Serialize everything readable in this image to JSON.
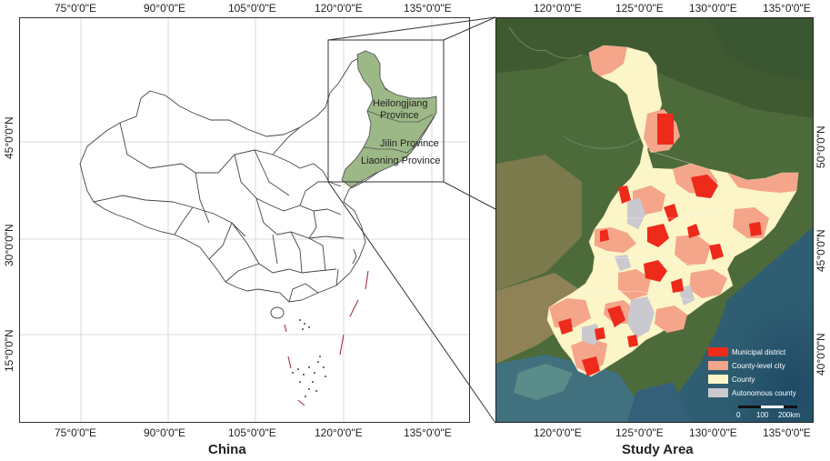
{
  "left_map": {
    "top_ticks": [
      "75°0'0\"E",
      "90°0'0\"E",
      "105°0'0\"E",
      "120°0'0\"E",
      "135°0'0\"E"
    ],
    "bottom_ticks": [
      "75°0'0\"E",
      "90°0'0\"E",
      "105°0'0\"E",
      "120°0'0\"E",
      "135°0'0\"E"
    ],
    "left_ticks": [
      "45°0'0\"N",
      "30°0'0\"N",
      "15°0'0\"N"
    ],
    "caption": "China",
    "labels": {
      "heilongjiang": "Heilongjiang Province",
      "jilin": "Jilin Province",
      "liaoning": "Liaoning Province"
    }
  },
  "right_map": {
    "top_ticks": [
      "120°0'0\"E",
      "125°0'0\"E",
      "130°0'0\"E",
      "135°0'0\"E"
    ],
    "bottom_ticks": [
      "120°0'0\"E",
      "125°0'0\"E",
      "130°0'0\"E",
      "135°0'0\"E"
    ],
    "right_ticks": [
      "50°0'0\"N",
      "45°0'0\"N",
      "40°0'0\"N"
    ],
    "caption": "Study Area",
    "legend": [
      {
        "label": "Municipal district",
        "color": "#ee2a1b"
      },
      {
        "label": "County-level city",
        "color": "#f4a58a"
      },
      {
        "label": "County",
        "color": "#fbf5c8"
      },
      {
        "label": "Autonomous county",
        "color": "#c9c9cf"
      }
    ],
    "scalebar": [
      "0",
      "100",
      "200km"
    ]
  },
  "colors": {
    "province_fill": "#9cb887",
    "municipal": "#ee2a1b",
    "county_city": "#f4a58a",
    "county": "#fbf5c8",
    "autonomous": "#c9c9cf"
  }
}
